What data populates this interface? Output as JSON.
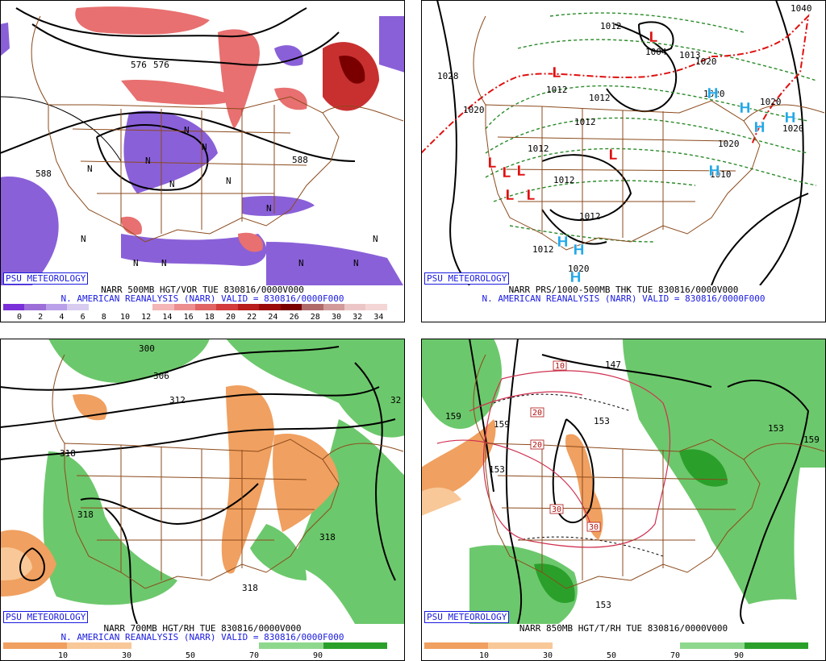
{
  "psu_label": "PSU METEOROLOGY",
  "panels": [
    {
      "caption_line1": "NARR 500MB HGT/VOR TUE 830816/0000V000",
      "caption_line2": "N. AMERICAN REANALYSIS (NARR) VALID = 830816/0000F000",
      "height_labels": [
        "576",
        "576",
        "588",
        "588"
      ],
      "vort_labels": [
        "N",
        "N",
        "N",
        "N",
        "N",
        "N",
        "N",
        "N",
        "N",
        "N",
        "N",
        "N",
        "N"
      ],
      "colorbar": {
        "colors": [
          "#7b2fd8",
          "#9d6ed8",
          "#b9a0e8",
          "#d8ccf0",
          "#ffffff",
          "#ffffff",
          "#ffffff",
          "#f4b6b6",
          "#ec8e8e",
          "#e06464",
          "#d23c3c",
          "#b81c1c",
          "#9a0a0a",
          "#7a0000",
          "#b06a6a",
          "#d29a9a",
          "#ecc6c6",
          "#f4d6d6"
        ],
        "ticks": [
          "0",
          "2",
          "4",
          "6",
          "8",
          "10",
          "12",
          "14",
          "16",
          "18",
          "20",
          "22",
          "24",
          "26",
          "28",
          "30",
          "32",
          "34"
        ]
      }
    },
    {
      "caption_line1": "NARR PRS/1000-500MB THK TUE 830816/0000V000",
      "caption_line2": "N. AMERICAN REANALYSIS (NARR) VALID = 830816/0000F000",
      "pressure_labels": [
        "1012",
        "1004",
        "1013",
        "1028",
        "1012",
        "1012",
        "1020",
        "1020",
        "1012",
        "1012",
        "1012",
        "1012",
        "1012",
        "1020",
        "1020",
        "1010",
        "1020",
        "1020",
        "1040",
        "1020"
      ],
      "lows": [
        "L",
        "L",
        "L",
        "L",
        "L",
        "L",
        "L",
        "L"
      ],
      "highs": [
        "H",
        "H",
        "H",
        "H",
        "H",
        "H",
        "H",
        "H"
      ]
    },
    {
      "caption_line1": "NARR 700MB HGT/RH TUE 830816/0000V000",
      "caption_line2": "N. AMERICAN REANALYSIS (NARR) VALID = 830816/0000F000",
      "height_labels": [
        "300",
        "306",
        "312",
        "318",
        "318",
        "318",
        "318",
        "32"
      ],
      "colorbar": {
        "colors": [
          "#f0a060",
          "#f8c898",
          "#ffffff",
          "#ffffff",
          "#8ed88e",
          "#2aa02a"
        ],
        "ticks": [
          "10",
          "30",
          "50",
          "70",
          "90"
        ]
      }
    },
    {
      "caption_line1": "NARR 850MB HGT/T/RH TUE 830816/0000V000",
      "caption_line2": "",
      "height_labels": [
        "159",
        "153",
        "153",
        "153",
        "159",
        "147",
        "153",
        "159"
      ],
      "temp_labels": [
        "10",
        "20",
        "20",
        "30",
        "30"
      ],
      "colorbar": {
        "colors": [
          "#f0a060",
          "#f8c898",
          "#ffffff",
          "#ffffff",
          "#8ed88e",
          "#2aa02a"
        ],
        "ticks": [
          "10",
          "30",
          "50",
          "70",
          "90"
        ]
      }
    }
  ],
  "colors": {
    "map_border": "#8b4a1c",
    "caption_blue": "#1a1ae0",
    "low_red": "#e01010",
    "high_blue": "#22a8e8"
  }
}
